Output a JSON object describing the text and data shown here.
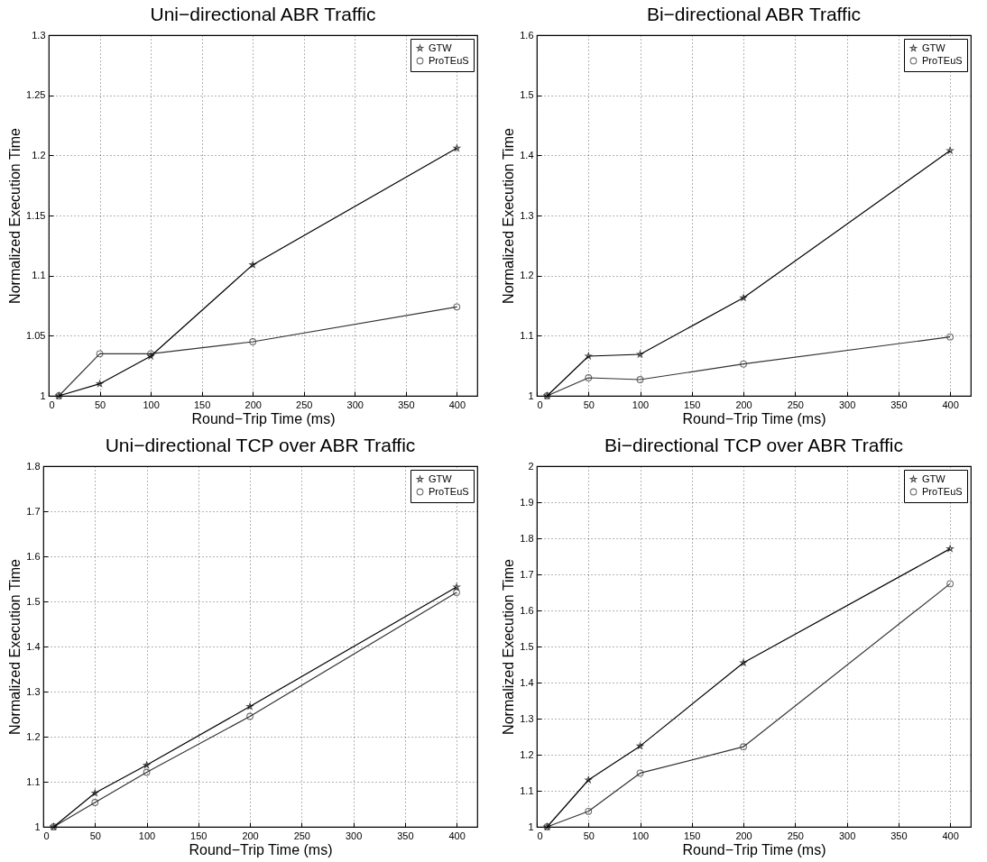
{
  "chart_data": [
    {
      "type": "line",
      "title": "Uni−directional ABR Traffic",
      "xlabel": "Round−Trip Time (ms)",
      "ylabel": "Normalized Execution Time",
      "x": [
        10,
        50,
        100,
        200,
        400
      ],
      "series": [
        {
          "name": "GTW",
          "color": "#000000",
          "marker": "star",
          "values": [
            1,
            1.01,
            1.033,
            1.109,
            1.206
          ]
        },
        {
          "name": "ProTEuS",
          "color": "#333333",
          "marker": "circle",
          "values": [
            1,
            1.035,
            1.035,
            1.045,
            1.074
          ]
        }
      ],
      "xlim": [
        0,
        420
      ],
      "xticks": [
        0,
        50,
        100,
        150,
        200,
        250,
        300,
        350,
        400
      ],
      "ylim": [
        1,
        1.3
      ],
      "yticks": [
        1,
        1.05,
        1.1,
        1.15,
        1.2,
        1.25,
        1.3
      ],
      "grid": true,
      "legend": "top right"
    },
    {
      "type": "line",
      "title": "Bi−directional ABR Traffic",
      "xlabel": "Round−Trip Time (ms)",
      "ylabel": "Normalized Execution Time",
      "x": [
        10,
        50,
        100,
        200,
        400
      ],
      "series": [
        {
          "name": "GTW",
          "color": "#000000",
          "marker": "star",
          "values": [
            1,
            1.066,
            1.069,
            1.163,
            1.408
          ]
        },
        {
          "name": "ProTEuS",
          "color": "#333333",
          "marker": "circle",
          "values": [
            1,
            1.03,
            1.027,
            1.053,
            1.098
          ]
        }
      ],
      "xlim": [
        0,
        420
      ],
      "xticks": [
        0,
        50,
        100,
        150,
        200,
        250,
        300,
        350,
        400
      ],
      "ylim": [
        1,
        1.6
      ],
      "yticks": [
        1,
        1.1,
        1.2,
        1.3,
        1.4,
        1.5,
        1.6
      ],
      "grid": true,
      "legend": "top right"
    },
    {
      "type": "line",
      "title": "Uni−directional TCP over ABR Traffic",
      "xlabel": "Round−Trip Time (ms)",
      "ylabel": "Normalized Execution Time",
      "x": [
        10,
        50,
        100,
        200,
        400
      ],
      "series": [
        {
          "name": "GTW",
          "color": "#000000",
          "marker": "star",
          "values": [
            1,
            1.075,
            1.137,
            1.267,
            1.532
          ]
        },
        {
          "name": "ProTEuS",
          "color": "#333333",
          "marker": "circle",
          "values": [
            1,
            1.054,
            1.121,
            1.245,
            1.52
          ]
        }
      ],
      "xlim": [
        0,
        420
      ],
      "xticks": [
        0,
        50,
        100,
        150,
        200,
        250,
        300,
        350,
        400
      ],
      "ylim": [
        1,
        1.8
      ],
      "yticks": [
        1,
        1.1,
        1.2,
        1.3,
        1.4,
        1.5,
        1.6,
        1.7,
        1.8
      ],
      "grid": true,
      "legend": "top right"
    },
    {
      "type": "line",
      "title": "Bi−directional TCP over ABR Traffic",
      "xlabel": "Round−Trip Time (ms)",
      "ylabel": "Normalized Execution Time",
      "x": [
        10,
        50,
        100,
        200,
        400
      ],
      "series": [
        {
          "name": "GTW",
          "color": "#000000",
          "marker": "star",
          "values": [
            1,
            1.13,
            1.224,
            1.455,
            1.771
          ]
        },
        {
          "name": "ProTEuS",
          "color": "#333333",
          "marker": "circle",
          "values": [
            1,
            1.043,
            1.149,
            1.222,
            1.674
          ]
        }
      ],
      "xlim": [
        0,
        420
      ],
      "xticks": [
        0,
        50,
        100,
        150,
        200,
        250,
        300,
        350,
        400
      ],
      "ylim": [
        1,
        2
      ],
      "yticks": [
        1,
        1.1,
        1.2,
        1.3,
        1.4,
        1.5,
        1.6,
        1.7,
        1.8,
        1.9,
        2
      ],
      "grid": true,
      "legend": "top right"
    }
  ]
}
